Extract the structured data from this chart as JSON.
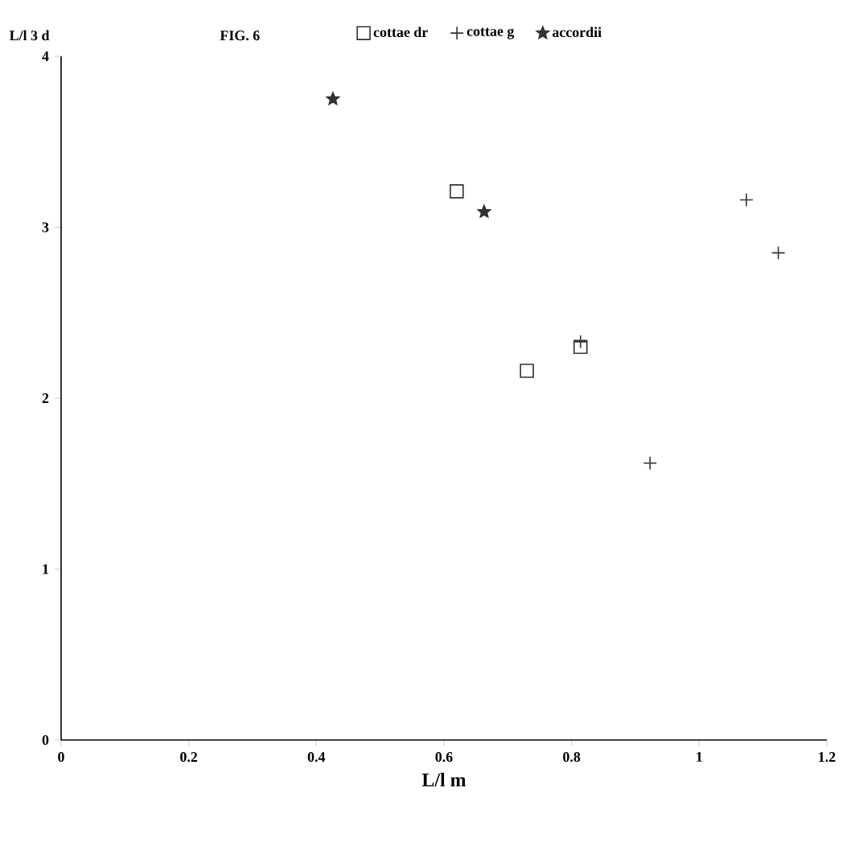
{
  "chart_data": {
    "type": "scatter",
    "title": "FIG. 6",
    "xlabel": "L/l m",
    "ylabel": "L/l 3 d",
    "xlim": [
      0,
      1.2
    ],
    "xticks": [
      0,
      0.2,
      0.4,
      0.6,
      0.8,
      1,
      1.2
    ],
    "ylim": [
      0,
      4
    ],
    "yticks": [
      0,
      1,
      2,
      3,
      4
    ],
    "legend": "top",
    "grid": false,
    "series": [
      {
        "name": "cottae dr",
        "color": "#333333",
        "marker": "square",
        "x": [
          0.62,
          0.73,
          0.814
        ],
        "values": [
          3.21,
          2.16,
          2.3
        ]
      },
      {
        "name": "cottae g",
        "color": "#333333",
        "marker": "cross",
        "x": [
          0.814,
          0.923,
          1.074,
          1.124
        ],
        "values": [
          2.33,
          1.62,
          3.16,
          2.85
        ]
      },
      {
        "name": "accordii",
        "color": "#333333",
        "marker": "star",
        "x": [
          0.426,
          0.663
        ],
        "values": [
          3.75,
          3.09
        ]
      }
    ]
  }
}
